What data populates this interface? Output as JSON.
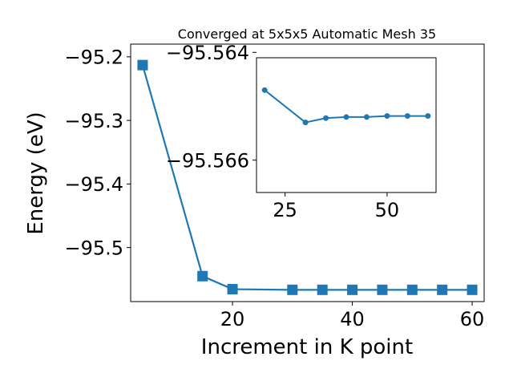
{
  "chart_data": [
    {
      "type": "line",
      "title": "Converged at 5x5x5 Automatic Mesh 35",
      "xlabel": "Increment in K point",
      "ylabel": "Energy (eV)",
      "xlim": [
        3,
        62
      ],
      "ylim": [
        -95.585,
        -95.18
      ],
      "xticks": [
        20,
        40,
        60
      ],
      "yticks": [
        -95.5,
        -95.4,
        -95.3,
        -95.2
      ],
      "ytick_labels": [
        "−95.5",
        "−95.4",
        "−95.3",
        "−95.2"
      ],
      "marker": "square",
      "color": "#1f77b4",
      "grid": false,
      "x": [
        5,
        15,
        20,
        30,
        35,
        40,
        45,
        50,
        55,
        60
      ],
      "y": [
        -95.213,
        -95.545,
        -95.5655,
        -95.5665,
        -95.5665,
        -95.5665,
        -95.5665,
        -95.5665,
        -95.5665,
        -95.5665
      ]
    },
    {
      "type": "line",
      "title": "",
      "xlabel": "",
      "ylabel": "",
      "xlim": [
        18,
        62
      ],
      "ylim": [
        -95.5666,
        -95.5641
      ],
      "xticks": [
        25,
        50
      ],
      "yticks": [
        -95.566,
        -95.564
      ],
      "ytick_labels": [
        "−95.566",
        "−95.564"
      ],
      "marker": "circle",
      "color": "#1f77b4",
      "grid": false,
      "x": [
        20,
        30,
        35,
        40,
        45,
        50,
        55,
        60
      ],
      "y": [
        -95.5647,
        -95.5653,
        -95.56522,
        -95.5652,
        -95.5652,
        -95.56518,
        -95.56518,
        -95.56518
      ]
    }
  ]
}
